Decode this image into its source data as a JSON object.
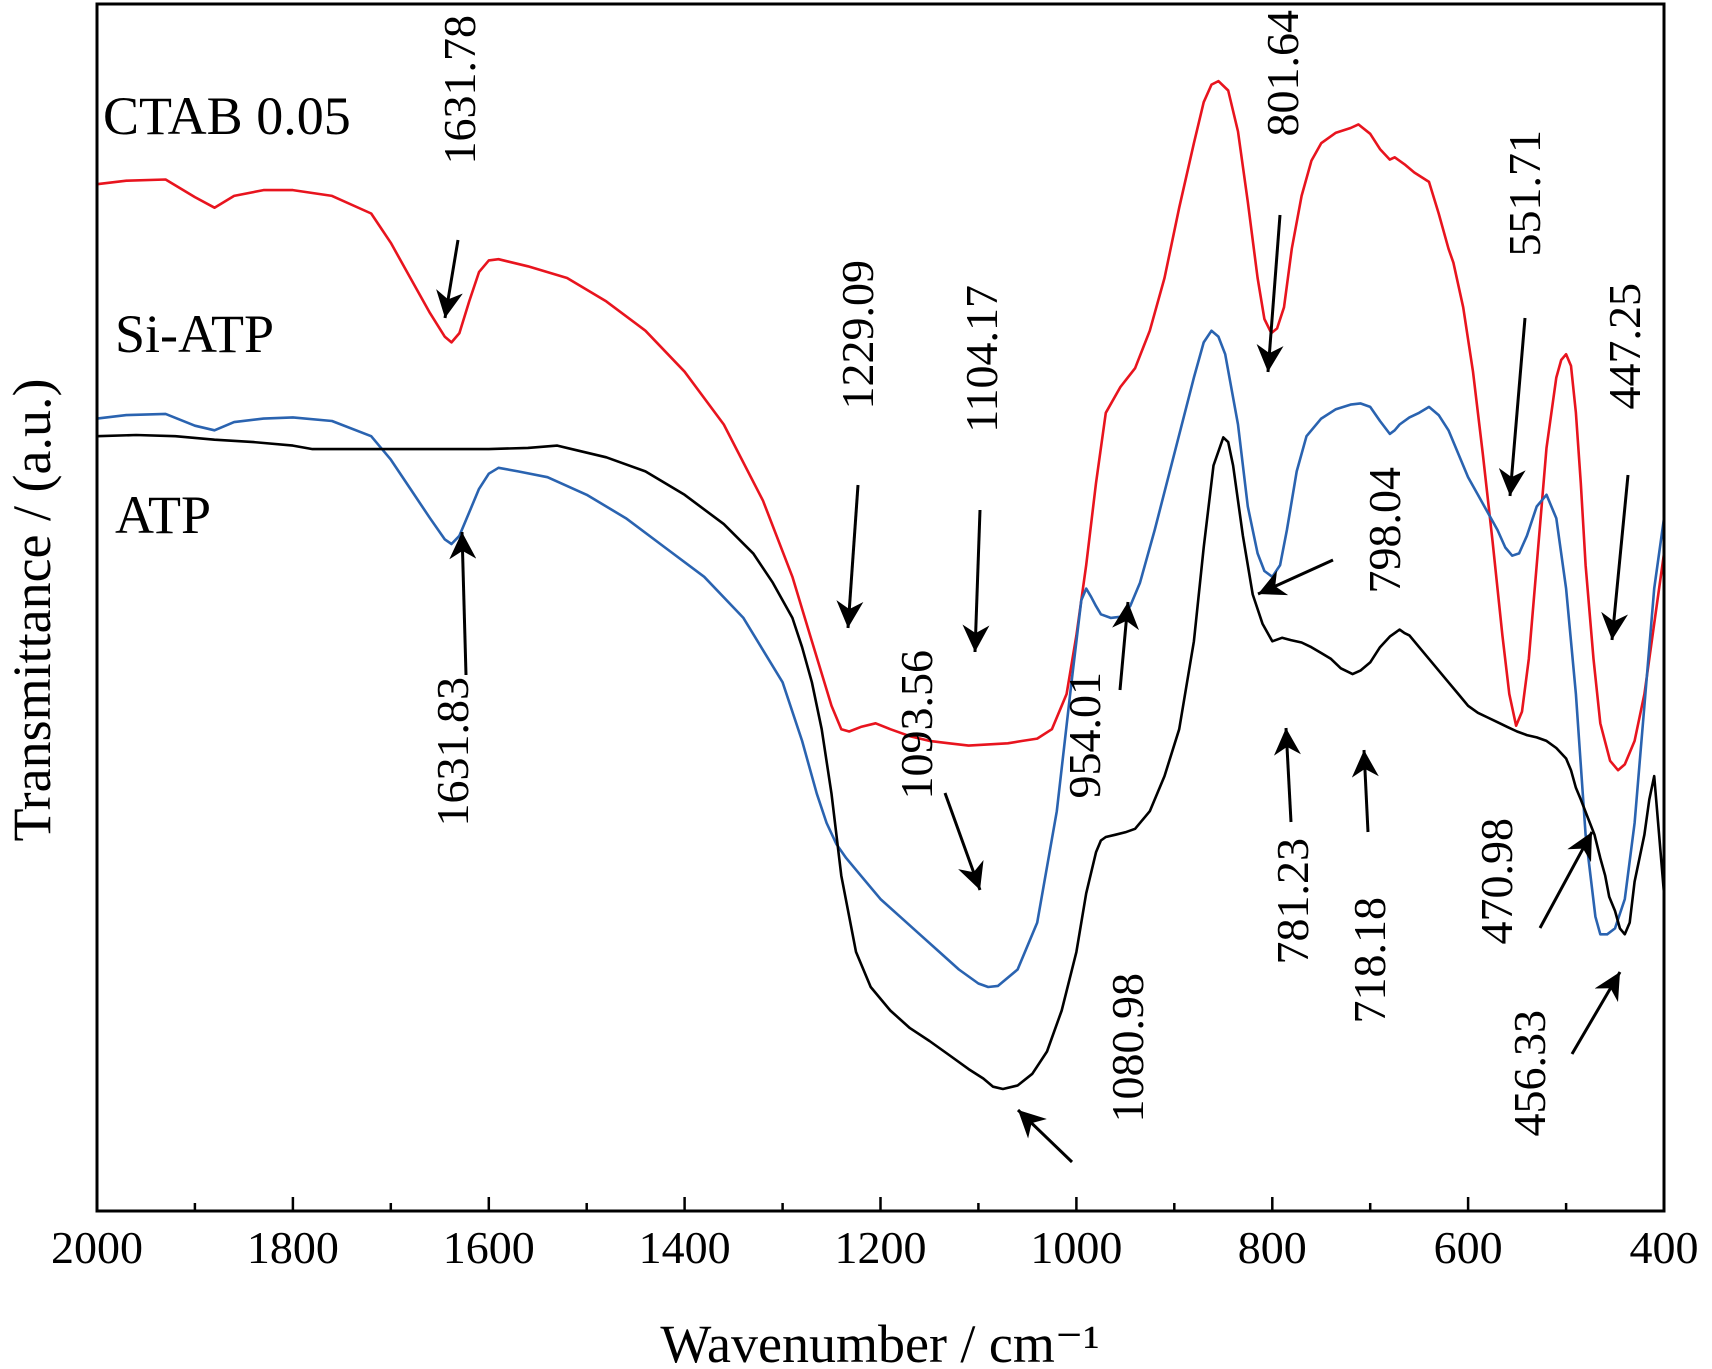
{
  "chart_data": {
    "type": "line",
    "title": "",
    "xlabel": "Wavenumber / cm⁻¹",
    "ylabel": "Transmittance / (a.u.)",
    "xlim": [
      2000,
      400
    ],
    "x_reversed": true,
    "ylim": [
      0,
      100
    ],
    "y_tick_labels_shown": false,
    "grid": false,
    "legend": "inline labels at left",
    "x_ticks": [
      2000,
      1800,
      1600,
      1400,
      1200,
      1000,
      800,
      600,
      400
    ],
    "x_tick_labels": [
      "2000",
      "1800",
      "1600",
      "1400",
      "1200",
      "1000",
      "800",
      "600",
      "400"
    ],
    "series": [
      {
        "name": "CTAB 0.05",
        "color": "#e8141e",
        "x": [
          2000,
          1970,
          1930,
          1900,
          1880,
          1860,
          1830,
          1800,
          1760,
          1720,
          1700,
          1680,
          1660,
          1645,
          1638,
          1630,
          1620,
          1610,
          1600,
          1590,
          1560,
          1520,
          1480,
          1440,
          1400,
          1360,
          1320,
          1290,
          1270,
          1250,
          1240,
          1232,
          1220,
          1205,
          1190,
          1170,
          1150,
          1130,
          1110,
          1090,
          1070,
          1055,
          1040,
          1025,
          1010,
          1000,
          990,
          980,
          970,
          955,
          940,
          925,
          910,
          895,
          880,
          870,
          862,
          855,
          845,
          835,
          825,
          815,
          808,
          801,
          795,
          788,
          780,
          770,
          760,
          750,
          735,
          720,
          712,
          700,
          690,
          680,
          675,
          665,
          655,
          640,
          630,
          620,
          615,
          605,
          595,
          585,
          575,
          565,
          558,
          551,
          545,
          538,
          530,
          520,
          510,
          505,
          500,
          495,
          490,
          485,
          480,
          472,
          465,
          455,
          447,
          440,
          430,
          420,
          410,
          400
        ],
        "y": [
          86.5,
          86.8,
          86.9,
          85.4,
          84.5,
          85.5,
          86.0,
          86.0,
          85.5,
          84.0,
          81.5,
          78.5,
          75.5,
          73.5,
          73.0,
          73.8,
          76.5,
          79.0,
          80.0,
          80.1,
          79.5,
          78.5,
          76.5,
          74.0,
          70.5,
          66.0,
          59.5,
          53.0,
          47.5,
          42.0,
          40.0,
          39.8,
          40.2,
          40.5,
          40.0,
          39.4,
          39.0,
          38.8,
          38.6,
          38.7,
          38.8,
          39.0,
          39.2,
          40.0,
          43.0,
          48.0,
          54.0,
          61.0,
          67.0,
          69.2,
          70.8,
          74.0,
          78.5,
          84.5,
          90.0,
          93.5,
          95.0,
          95.3,
          94.5,
          91.0,
          85.0,
          78.5,
          75.0,
          73.8,
          74.2,
          76.0,
          81.0,
          85.5,
          88.5,
          90.0,
          90.9,
          91.3,
          91.6,
          90.8,
          89.5,
          88.6,
          88.8,
          88.2,
          87.5,
          86.7,
          84.0,
          81.0,
          79.8,
          76.0,
          70.5,
          63.5,
          56.0,
          48.0,
          43.0,
          40.3,
          41.5,
          46.0,
          54.0,
          64.0,
          70.0,
          71.5,
          72.0,
          71.0,
          67.0,
          61.0,
          54.0,
          46.0,
          40.5,
          37.3,
          36.5,
          37.0,
          39.0,
          43.0,
          49.0,
          55.0
        ]
      },
      {
        "name": "Si-ATP",
        "color": "#2a63b0",
        "x": [
          2000,
          1970,
          1930,
          1900,
          1880,
          1860,
          1830,
          1800,
          1760,
          1720,
          1700,
          1680,
          1660,
          1645,
          1638,
          1630,
          1620,
          1610,
          1600,
          1590,
          1570,
          1540,
          1500,
          1460,
          1420,
          1380,
          1340,
          1300,
          1280,
          1265,
          1255,
          1245,
          1235,
          1220,
          1200,
          1180,
          1160,
          1140,
          1120,
          1100,
          1090,
          1080,
          1060,
          1040,
          1020,
          1005,
          995,
          990,
          985,
          980,
          975,
          965,
          954,
          945,
          935,
          920,
          900,
          880,
          870,
          862,
          855,
          848,
          835,
          825,
          815,
          808,
          800,
          792,
          785,
          775,
          765,
          750,
          735,
          720,
          710,
          700,
          690,
          680,
          675,
          670,
          660,
          650,
          640,
          630,
          620,
          610,
          600,
          590,
          580,
          570,
          562,
          555,
          548,
          540,
          530,
          520,
          510,
          500,
          490,
          480,
          470,
          465,
          458,
          450,
          440,
          430,
          420,
          410,
          400
        ],
        "y": [
          66.5,
          66.8,
          66.9,
          65.9,
          65.5,
          66.2,
          66.5,
          66.6,
          66.3,
          65.0,
          63.0,
          60.5,
          58.0,
          56.2,
          55.8,
          56.5,
          58.5,
          60.5,
          61.8,
          62.3,
          62.0,
          61.5,
          60.0,
          58.0,
          55.5,
          53.0,
          49.5,
          44.0,
          39.0,
          34.5,
          32.0,
          30.2,
          29.0,
          27.5,
          25.5,
          24.0,
          22.5,
          21.0,
          19.5,
          18.3,
          18.0,
          18.1,
          19.5,
          23.5,
          33.0,
          44.0,
          51.0,
          52.0,
          51.3,
          50.5,
          49.8,
          49.5,
          49.6,
          50.5,
          52.5,
          57.0,
          63.5,
          70.0,
          73.0,
          74.0,
          73.5,
          72.0,
          66.0,
          59.0,
          55.0,
          53.5,
          53.0,
          54.0,
          57.0,
          62.0,
          65.0,
          66.5,
          67.3,
          67.7,
          67.8,
          67.5,
          66.3,
          65.2,
          65.5,
          66.0,
          66.6,
          67.0,
          67.5,
          66.8,
          65.5,
          63.5,
          61.5,
          60.0,
          58.5,
          57.0,
          55.5,
          54.8,
          55.0,
          56.5,
          59.0,
          60.0,
          58.0,
          52.0,
          43.0,
          31.0,
          24.0,
          22.5,
          22.5,
          23.0,
          25.5,
          32.0,
          42.0,
          52.0,
          58.0
        ]
      },
      {
        "name": "ATP",
        "color": "#000000",
        "x": [
          2000,
          1960,
          1920,
          1880,
          1840,
          1800,
          1780,
          1750,
          1700,
          1650,
          1600,
          1560,
          1530,
          1510,
          1480,
          1440,
          1400,
          1360,
          1330,
          1310,
          1290,
          1280,
          1270,
          1260,
          1250,
          1240,
          1225,
          1210,
          1190,
          1170,
          1150,
          1130,
          1110,
          1095,
          1085,
          1075,
          1060,
          1045,
          1030,
          1015,
          1000,
          990,
          980,
          975,
          970,
          960,
          950,
          940,
          925,
          910,
          895,
          880,
          870,
          860,
          850,
          845,
          840,
          835,
          830,
          825,
          820,
          810,
          800,
          790,
          781,
          770,
          760,
          750,
          740,
          730,
          718,
          710,
          700,
          690,
          680,
          670,
          665,
          660,
          650,
          640,
          630,
          620,
          610,
          600,
          590,
          580,
          570,
          560,
          550,
          540,
          530,
          520,
          510,
          500,
          495,
          490,
          485,
          478,
          471,
          465,
          460,
          456,
          450,
          445,
          440,
          435,
          430,
          420,
          415,
          410,
          405,
          400
        ],
        "y": [
          65.0,
          65.1,
          65.0,
          64.7,
          64.5,
          64.2,
          63.9,
          63.9,
          63.9,
          63.9,
          63.9,
          64.0,
          64.2,
          63.8,
          63.2,
          62.0,
          60.0,
          57.5,
          55.0,
          52.5,
          49.5,
          47.0,
          44.0,
          40.0,
          34.5,
          27.5,
          21.0,
          18.0,
          16.0,
          14.5,
          13.4,
          12.2,
          11.0,
          10.2,
          9.5,
          9.3,
          9.6,
          10.6,
          12.5,
          16.0,
          21.0,
          26.0,
          29.5,
          30.5,
          30.8,
          31.0,
          31.2,
          31.5,
          33.0,
          36.0,
          40.0,
          47.5,
          55.5,
          62.5,
          64.9,
          64.5,
          62.5,
          59.5,
          56.5,
          54.0,
          51.5,
          49.0,
          47.5,
          47.8,
          47.6,
          47.4,
          47.0,
          46.5,
          46.0,
          45.2,
          44.7,
          45.0,
          45.7,
          47.0,
          47.9,
          48.5,
          48.2,
          48.0,
          47.0,
          46.0,
          45.0,
          44.0,
          43.0,
          42.0,
          41.4,
          41.0,
          40.6,
          40.2,
          39.8,
          39.5,
          39.3,
          39.0,
          38.4,
          37.5,
          36.5,
          35.0,
          34.0,
          32.5,
          31.0,
          29.0,
          27.5,
          25.7,
          24.5,
          23.0,
          22.5,
          23.5,
          27.0,
          31.0,
          34.0,
          36.0,
          31.0,
          26.0
        ]
      }
    ],
    "annotations": [
      {
        "text": "1631.78",
        "series": "CTAB 0.05"
      },
      {
        "text": "1229.09",
        "series": "CTAB 0.05"
      },
      {
        "text": "1104.17",
        "series": "CTAB 0.05"
      },
      {
        "text": "801.64",
        "series": "CTAB 0.05"
      },
      {
        "text": "551.71",
        "series": "CTAB 0.05"
      },
      {
        "text": "447.25",
        "series": "CTAB 0.05"
      },
      {
        "text": "1631.83",
        "series": "Si-ATP"
      },
      {
        "text": "1093.56",
        "series": "Si-ATP"
      },
      {
        "text": "954.01",
        "series": "Si-ATP"
      },
      {
        "text": "798.04",
        "series": "ATP"
      },
      {
        "text": "781.23",
        "series": "ATP"
      },
      {
        "text": "718.18",
        "series": "ATP"
      },
      {
        "text": "470.98",
        "series": "Si-ATP"
      },
      {
        "text": "1080.98",
        "series": "ATP"
      },
      {
        "text": "456.33",
        "series": "ATP"
      }
    ]
  }
}
